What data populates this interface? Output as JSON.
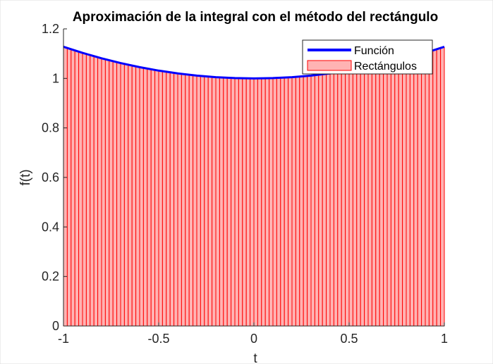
{
  "chart_data": {
    "type": "bar",
    "title": "Aproximación de la integral con el método del rectángulo",
    "xlabel": "t",
    "ylabel": "f(t)",
    "xlim": [
      -1,
      1
    ],
    "ylim": [
      0,
      1.2
    ],
    "xticks": [
      "-1",
      "-0.5",
      "0",
      "0.5",
      "1"
    ],
    "xtick_values": [
      -1,
      -0.5,
      0,
      0.5,
      1
    ],
    "yticks": [
      "0",
      "0.2",
      "0.4",
      "0.6",
      "0.8",
      "1",
      "1.2"
    ],
    "ytick_values": [
      0,
      0.2,
      0.4,
      0.6,
      0.8,
      1,
      1.2
    ],
    "grid": false,
    "legend": {
      "placement": "top-right",
      "entries": [
        "Función",
        "Rectángulos"
      ]
    },
    "colors": {
      "function": "#0000ff",
      "rect_fill": "#ffb3b3",
      "rect_edge": "#ff0000"
    },
    "function_line": {
      "name": "Función",
      "x": [
        -1,
        -0.9,
        -0.8,
        -0.7,
        -0.6,
        -0.5,
        -0.4,
        -0.3,
        -0.2,
        -0.1,
        0,
        0.1,
        0.2,
        0.3,
        0.4,
        0.5,
        0.6,
        0.7,
        0.8,
        0.9,
        1
      ],
      "y": [
        1.1276,
        1.103,
        1.0811,
        1.0619,
        1.0453,
        1.0314,
        1.0201,
        1.0113,
        1.005,
        1.00125,
        1,
        1.00125,
        1.005,
        1.0113,
        1.0201,
        1.0314,
        1.0453,
        1.0619,
        1.0811,
        1.103,
        1.1276
      ]
    },
    "rectangles": {
      "name": "Rectángulos",
      "width": 0.02,
      "half_heights_from_center": [
        1.0,
        1.0,
        1.0,
        1.001,
        1.001,
        1.002,
        1.002,
        1.003,
        1.004,
        1.005,
        1.006,
        1.007,
        1.008,
        1.009,
        1.011,
        1.012,
        1.014,
        1.015,
        1.017,
        1.019,
        1.021,
        1.023,
        1.026,
        1.028,
        1.03,
        1.033,
        1.035,
        1.038,
        1.041,
        1.044,
        1.047,
        1.05,
        1.053,
        1.056,
        1.06,
        1.064,
        1.067,
        1.071,
        1.075,
        1.079,
        1.083,
        1.087,
        1.092,
        1.096,
        1.101,
        1.105,
        1.11,
        1.115,
        1.12,
        1.125
      ]
    }
  }
}
